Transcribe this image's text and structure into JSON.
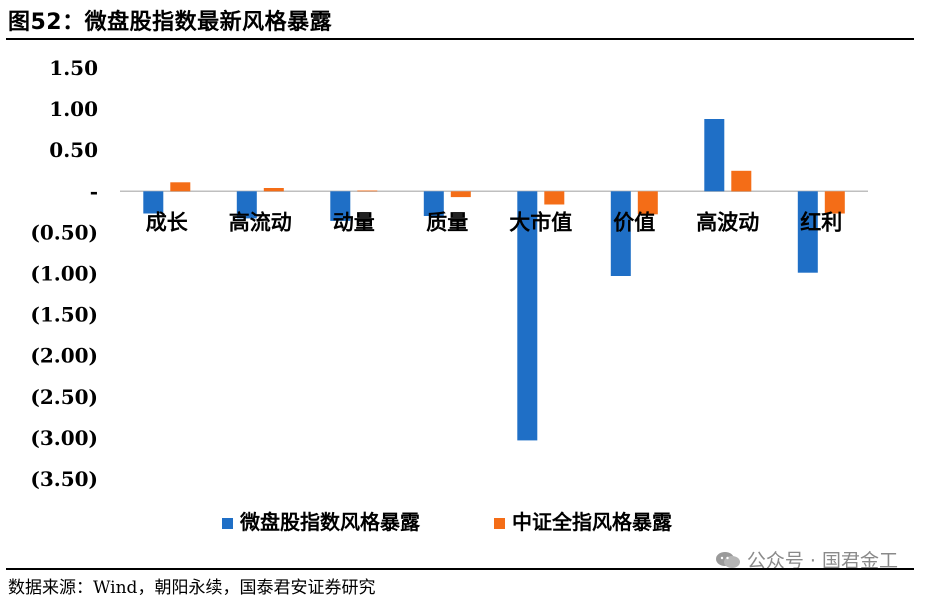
{
  "title": "图52：微盘股指数最新风格暴露",
  "source": "数据来源：Wind，朝阳永续，国泰君安证券研究",
  "watermark": "公众号 · 国君金工",
  "colors": {
    "series1": "#1f6fc6",
    "series2": "#f46d17",
    "axis": "#bfbfbf"
  },
  "chart_data": {
    "type": "bar",
    "categories": [
      "成长",
      "高流动",
      "动量",
      "质量",
      "大市值",
      "价值",
      "高波动",
      "红利"
    ],
    "series": [
      {
        "name": "微盘股指数风格暴露",
        "values": [
          -0.27,
          -0.33,
          -0.36,
          -0.3,
          -3.03,
          -1.03,
          0.88,
          -0.99
        ]
      },
      {
        "name": "中证全指风格暴露",
        "values": [
          0.11,
          0.04,
          0.01,
          -0.07,
          -0.16,
          -0.28,
          0.25,
          -0.27
        ]
      }
    ],
    "yticks": [
      "1.50",
      "1.00",
      "0.50",
      "-",
      "(0.50)",
      "(1.00)",
      "(1.50)",
      "(2.00)",
      "(2.50)",
      "(3.00)",
      "(3.50)"
    ],
    "ylim": [
      -3.5,
      1.5
    ],
    "legend": "bottom",
    "grid": false
  }
}
